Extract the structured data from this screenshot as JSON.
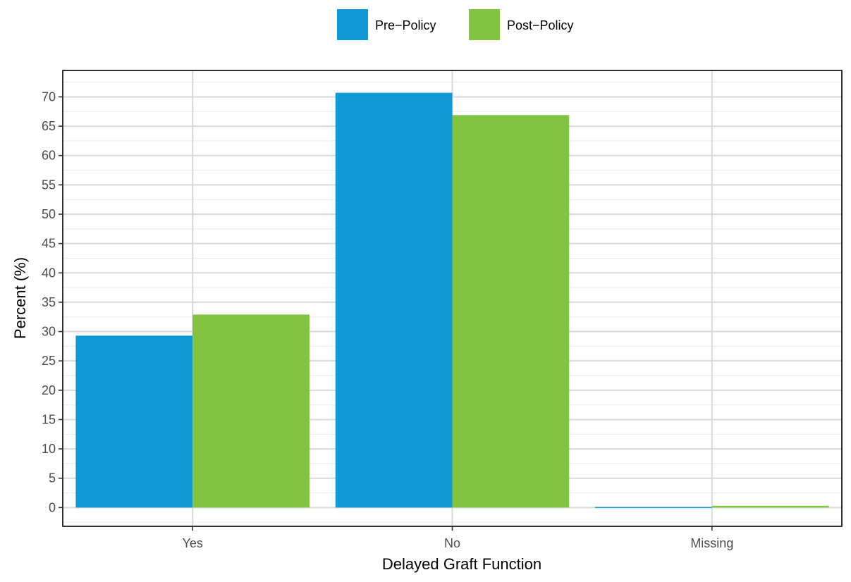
{
  "chart_data": {
    "type": "bar",
    "title": "",
    "xlabel": "Delayed Graft Function",
    "ylabel": "Percent (%)",
    "categories": [
      "Yes",
      "No",
      "Missing"
    ],
    "series": [
      {
        "name": "Pre−Policy",
        "values": [
          29.3,
          70.7,
          0.1
        ],
        "color": "#1199d6"
      },
      {
        "name": "Post−Policy",
        "values": [
          32.9,
          66.9,
          0.3
        ],
        "color": "#82c341"
      }
    ],
    "ylim": [
      -3.2,
      74.5
    ],
    "yticks": [
      0,
      5,
      10,
      15,
      20,
      25,
      30,
      35,
      40,
      45,
      50,
      55,
      60,
      65,
      70
    ],
    "grid": true,
    "legend_position": "top"
  }
}
